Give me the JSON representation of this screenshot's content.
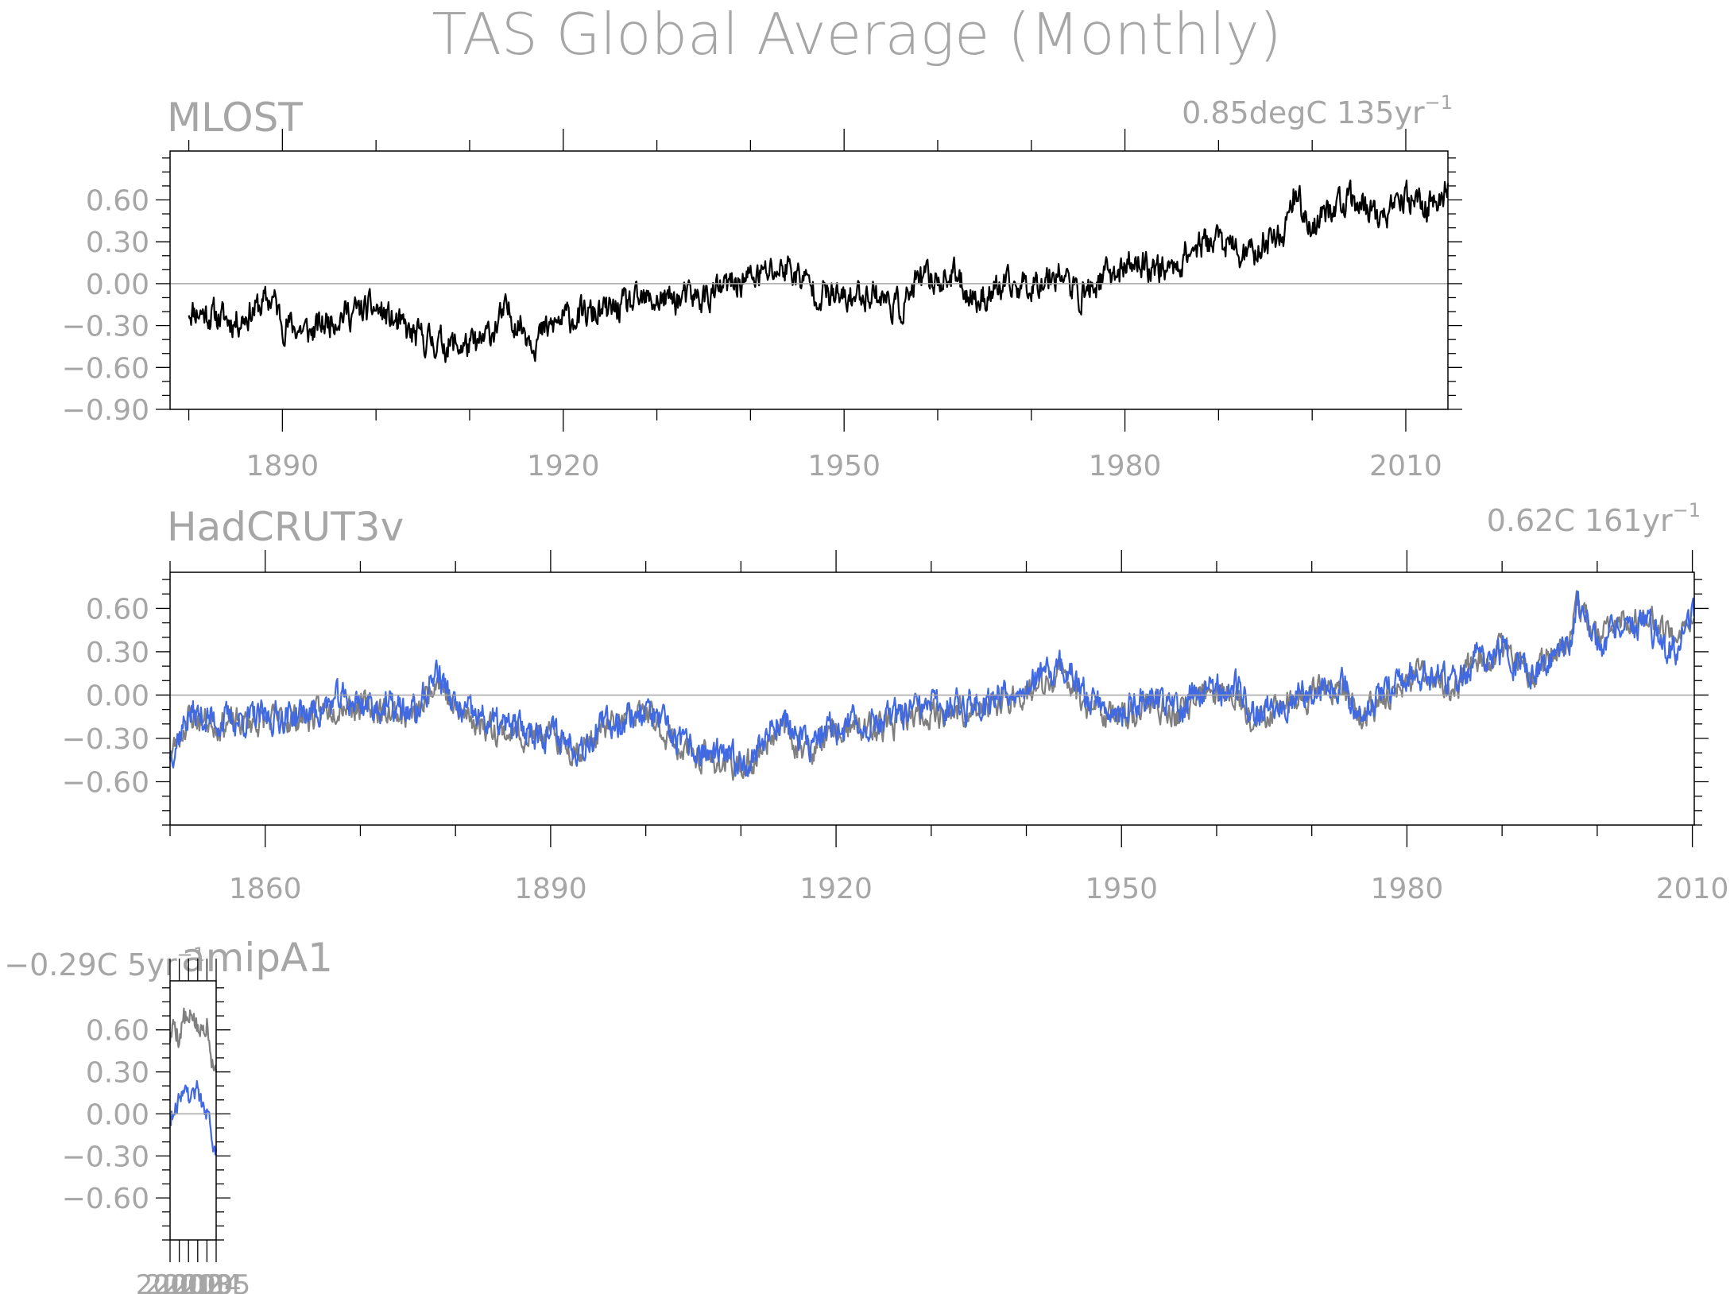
{
  "figure": {
    "title": "TAS Global Average (Monthly)",
    "text_color": "#a6a6a6",
    "axis_color": "#000000",
    "zero_line_color": "#a6a6a6"
  },
  "chart_data": [
    {
      "type": "line",
      "title": "MLOST",
      "trend_label": "0.85degC 135yr",
      "trend_label_superscript": "−1",
      "xlim": [
        1878,
        2014.5
      ],
      "ylim": [
        -0.9,
        0.95
      ],
      "xticks": [
        1890,
        1920,
        1950,
        1980,
        2010
      ],
      "yticks": [
        -0.9,
        -0.6,
        -0.3,
        0.0,
        0.3,
        0.6
      ],
      "ytick_labels": [
        "−0.90",
        "−0.60",
        "−0.30",
        "0.00",
        "0.30",
        "0.60"
      ],
      "grid": false,
      "zero_line": true,
      "series": [
        {
          "color": "#000000",
          "x_start": 1880,
          "x_end": 2014.5,
          "anchors": [
            [
              1880,
              -0.18
            ],
            [
              1885,
              -0.27
            ],
            [
              1889,
              -0.1
            ],
            [
              1890,
              -0.28
            ],
            [
              1893,
              -0.35
            ],
            [
              1896,
              -0.22
            ],
            [
              1900,
              -0.18
            ],
            [
              1904,
              -0.38
            ],
            [
              1908,
              -0.44
            ],
            [
              1911,
              -0.45
            ],
            [
              1914,
              -0.2
            ],
            [
              1917,
              -0.4
            ],
            [
              1920,
              -0.25
            ],
            [
              1925,
              -0.2
            ],
            [
              1927,
              -0.15
            ],
            [
              1930,
              -0.12
            ],
            [
              1935,
              -0.1
            ],
            [
              1939,
              0.02
            ],
            [
              1942,
              0.08
            ],
            [
              1944,
              0.12
            ],
            [
              1947,
              -0.05
            ],
            [
              1950,
              -0.12
            ],
            [
              1953,
              -0.05
            ],
            [
              1956,
              -0.18
            ],
            [
              1958,
              0.02
            ],
            [
              1962,
              0.05
            ],
            [
              1964,
              -0.12
            ],
            [
              1966,
              -0.05
            ],
            [
              1970,
              0.0
            ],
            [
              1973,
              0.1
            ],
            [
              1975,
              -0.1
            ],
            [
              1978,
              0.05
            ],
            [
              1981,
              0.15
            ],
            [
              1985,
              0.1
            ],
            [
              1987,
              0.25
            ],
            [
              1990,
              0.32
            ],
            [
              1993,
              0.18
            ],
            [
              1995,
              0.3
            ],
            [
              1997,
              0.38
            ],
            [
              1998,
              0.65
            ],
            [
              2000,
              0.4
            ],
            [
              2002,
              0.55
            ],
            [
              2005,
              0.58
            ],
            [
              2008,
              0.45
            ],
            [
              2010,
              0.62
            ],
            [
              2012,
              0.55
            ],
            [
              2014.5,
              0.68
            ]
          ],
          "noise": 0.09,
          "seed": 11
        }
      ]
    },
    {
      "type": "line",
      "title": "HadCRUT3v",
      "trend_label": "0.62C 161yr",
      "trend_label_superscript": "−1",
      "xlim": [
        1850,
        2010.2
      ],
      "ylim": [
        -0.9,
        0.85
      ],
      "xticks": [
        1860,
        1890,
        1920,
        1950,
        1980,
        2010
      ],
      "yticks": [
        -0.6,
        -0.3,
        0.0,
        0.3,
        0.6
      ],
      "ytick_labels": [
        "−0.60",
        "−0.30",
        "0.00",
        "0.30",
        "0.60"
      ],
      "grid": false,
      "zero_line": true,
      "series": [
        {
          "color": "#7f7f7f",
          "x_start": 1850,
          "x_end": 2010.2,
          "anchors": [
            [
              1850,
              -0.42
            ],
            [
              1852,
              -0.15
            ],
            [
              1855,
              -0.2
            ],
            [
              1860,
              -0.18
            ],
            [
              1865,
              -0.15
            ],
            [
              1868,
              -0.05
            ],
            [
              1872,
              -0.1
            ],
            [
              1876,
              -0.15
            ],
            [
              1878,
              0.15
            ],
            [
              1880,
              -0.12
            ],
            [
              1885,
              -0.25
            ],
            [
              1890,
              -0.3
            ],
            [
              1893,
              -0.38
            ],
            [
              1896,
              -0.22
            ],
            [
              1900,
              -0.12
            ],
            [
              1904,
              -0.4
            ],
            [
              1907,
              -0.45
            ],
            [
              1909,
              -0.5
            ],
            [
              1911,
              -0.48
            ],
            [
              1914,
              -0.2
            ],
            [
              1917,
              -0.4
            ],
            [
              1920,
              -0.26
            ],
            [
              1925,
              -0.22
            ],
            [
              1930,
              -0.12
            ],
            [
              1935,
              -0.12
            ],
            [
              1939,
              0.0
            ],
            [
              1942,
              0.05
            ],
            [
              1944,
              0.15
            ],
            [
              1946,
              -0.04
            ],
            [
              1950,
              -0.17
            ],
            [
              1953,
              -0.05
            ],
            [
              1956,
              -0.15
            ],
            [
              1958,
              0.0
            ],
            [
              1962,
              0.02
            ],
            [
              1964,
              -0.18
            ],
            [
              1966,
              -0.08
            ],
            [
              1970,
              0.0
            ],
            [
              1973,
              0.08
            ],
            [
              1975,
              -0.15
            ],
            [
              1978,
              0.0
            ],
            [
              1981,
              0.12
            ],
            [
              1985,
              0.05
            ],
            [
              1987,
              0.22
            ],
            [
              1990,
              0.3
            ],
            [
              1993,
              0.15
            ],
            [
              1995,
              0.28
            ],
            [
              1997,
              0.4
            ],
            [
              1998,
              0.65
            ],
            [
              2000,
              0.35
            ],
            [
              2002,
              0.5
            ],
            [
              2005,
              0.55
            ],
            [
              2008,
              0.42
            ],
            [
              2010,
              0.55
            ]
          ],
          "noise": 0.08,
          "seed": 23
        },
        {
          "color": "#4169e1",
          "x_start": 1850,
          "x_end": 2010.2,
          "anchors": [
            [
              1850,
              -0.4
            ],
            [
              1852,
              -0.13
            ],
            [
              1855,
              -0.18
            ],
            [
              1860,
              -0.16
            ],
            [
              1865,
              -0.12
            ],
            [
              1868,
              -0.03
            ],
            [
              1872,
              -0.08
            ],
            [
              1876,
              -0.12
            ],
            [
              1878,
              0.18
            ],
            [
              1880,
              -0.1
            ],
            [
              1885,
              -0.22
            ],
            [
              1890,
              -0.26
            ],
            [
              1893,
              -0.35
            ],
            [
              1896,
              -0.2
            ],
            [
              1900,
              -0.1
            ],
            [
              1904,
              -0.36
            ],
            [
              1907,
              -0.42
            ],
            [
              1909,
              -0.46
            ],
            [
              1911,
              -0.44
            ],
            [
              1914,
              -0.15
            ],
            [
              1917,
              -0.36
            ],
            [
              1920,
              -0.22
            ],
            [
              1925,
              -0.18
            ],
            [
              1930,
              -0.08
            ],
            [
              1935,
              -0.06
            ],
            [
              1939,
              0.06
            ],
            [
              1942,
              0.12
            ],
            [
              1944,
              0.2
            ],
            [
              1946,
              0.0
            ],
            [
              1950,
              -0.12
            ],
            [
              1953,
              0.0
            ],
            [
              1956,
              -0.1
            ],
            [
              1958,
              0.04
            ],
            [
              1962,
              0.05
            ],
            [
              1964,
              -0.14
            ],
            [
              1966,
              -0.05
            ],
            [
              1970,
              0.03
            ],
            [
              1973,
              0.1
            ],
            [
              1975,
              -0.12
            ],
            [
              1978,
              0.03
            ],
            [
              1981,
              0.15
            ],
            [
              1985,
              0.07
            ],
            [
              1987,
              0.24
            ],
            [
              1990,
              0.3
            ],
            [
              1993,
              0.13
            ],
            [
              1995,
              0.26
            ],
            [
              1997,
              0.36
            ],
            [
              1998,
              0.62
            ],
            [
              2000,
              0.32
            ],
            [
              2002,
              0.47
            ],
            [
              2005,
              0.5
            ],
            [
              2008,
              0.3
            ],
            [
              2010,
              0.52
            ]
          ],
          "noise": 0.09,
          "seed": 37
        }
      ]
    },
    {
      "type": "line",
      "title": "amipA1",
      "trend_label": "−0.29C 5yr",
      "trend_label_superscript": "−1",
      "xlim": [
        2000,
        2005
      ],
      "ylim": [
        -0.9,
        0.95
      ],
      "xticks": [
        2000,
        2001,
        2002,
        2003,
        2004,
        2005
      ],
      "xtick_labels": [
        "2000",
        "2001",
        "2002",
        "2003",
        "2004",
        "2005"
      ],
      "yticks": [
        -0.6,
        -0.3,
        0.0,
        0.3,
        0.6
      ],
      "ytick_labels": [
        "−0.60",
        "−0.30",
        "0.00",
        "0.30",
        "0.60"
      ],
      "grid": false,
      "zero_line": true,
      "series": [
        {
          "color": "#7f7f7f",
          "x_start": 2000,
          "x_end": 2005,
          "anchors": [
            [
              2000,
              0.55
            ],
            [
              2000.5,
              0.65
            ],
            [
              2001,
              0.55
            ],
            [
              2001.5,
              0.7
            ],
            [
              2002,
              0.62
            ],
            [
              2002.5,
              0.72
            ],
            [
              2003,
              0.58
            ],
            [
              2003.5,
              0.6
            ],
            [
              2004,
              0.7
            ],
            [
              2004.5,
              0.45
            ],
            [
              2005,
              0.3
            ]
          ],
          "noise": 0.08,
          "seed": 5
        },
        {
          "color": "#4169e1",
          "x_start": 2000,
          "x_end": 2005,
          "anchors": [
            [
              2000,
              -0.03
            ],
            [
              2000.5,
              0.05
            ],
            [
              2001,
              0.1
            ],
            [
              2001.5,
              0.22
            ],
            [
              2002,
              0.12
            ],
            [
              2002.5,
              0.15
            ],
            [
              2003,
              0.18
            ],
            [
              2003.5,
              0.05
            ],
            [
              2004,
              0.0
            ],
            [
              2004.5,
              -0.15
            ],
            [
              2005,
              -0.3
            ]
          ],
          "noise": 0.06,
          "seed": 9
        }
      ]
    }
  ]
}
